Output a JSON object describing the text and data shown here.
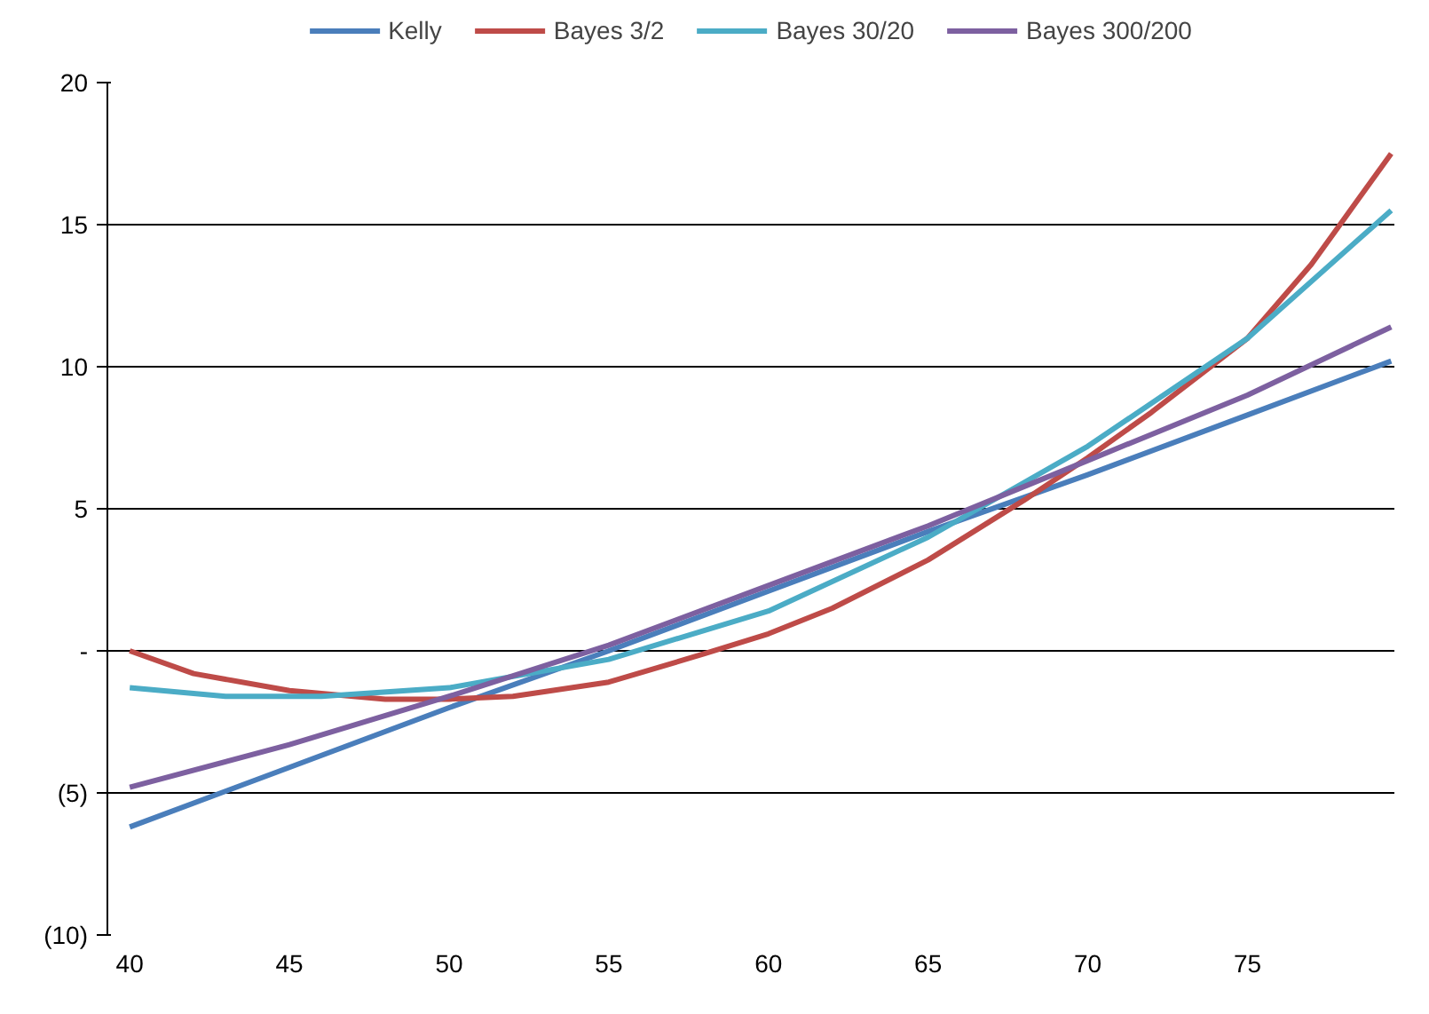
{
  "chart_data": {
    "type": "line",
    "xlim": [
      39.3,
      79.6
    ],
    "ylim": [
      -10,
      20
    ],
    "xticks": [
      40,
      45,
      50,
      55,
      60,
      65,
      70,
      75
    ],
    "yticks": [
      {
        "value": -10,
        "label": "(10)"
      },
      {
        "value": -5,
        "label": "(5)"
      },
      {
        "value": 0,
        "label": "-"
      },
      5,
      10,
      15,
      20
    ],
    "grid": "y",
    "legend": "top",
    "line_style": "solid",
    "series": [
      {
        "name": "Kelly",
        "color": "#4a7ebb",
        "x": [
          40,
          45,
          50,
          55,
          60,
          65,
          70,
          75,
          79.5
        ],
        "values": [
          -6.2,
          -4.1,
          -2.0,
          0.0,
          2.1,
          4.2,
          6.2,
          8.3,
          10.2
        ]
      },
      {
        "name": "Bayes 3/2",
        "color": "#be4b48",
        "x": [
          40,
          42,
          45,
          48,
          50,
          52,
          55,
          58,
          60,
          62,
          65,
          68,
          70,
          72,
          75,
          77,
          79.5
        ],
        "values": [
          0.0,
          -0.8,
          -1.4,
          -1.7,
          -1.7,
          -1.6,
          -1.1,
          -0.1,
          0.6,
          1.5,
          3.2,
          5.3,
          6.8,
          8.4,
          11.0,
          13.6,
          17.5
        ]
      },
      {
        "name": "Bayes 30/20",
        "color": "#4bacc6",
        "x": [
          40,
          43,
          46,
          50,
          55,
          60,
          65,
          70,
          75,
          79.5
        ],
        "values": [
          -1.3,
          -1.6,
          -1.6,
          -1.3,
          -0.3,
          1.4,
          4.0,
          7.2,
          11.0,
          15.5
        ]
      },
      {
        "name": "Bayes 300/200",
        "color": "#7d60a0",
        "x": [
          40,
          45,
          50,
          55,
          60,
          65,
          70,
          75,
          79.5
        ],
        "values": [
          -4.8,
          -3.3,
          -1.6,
          0.2,
          2.3,
          4.4,
          6.7,
          9.0,
          11.4
        ]
      }
    ]
  }
}
